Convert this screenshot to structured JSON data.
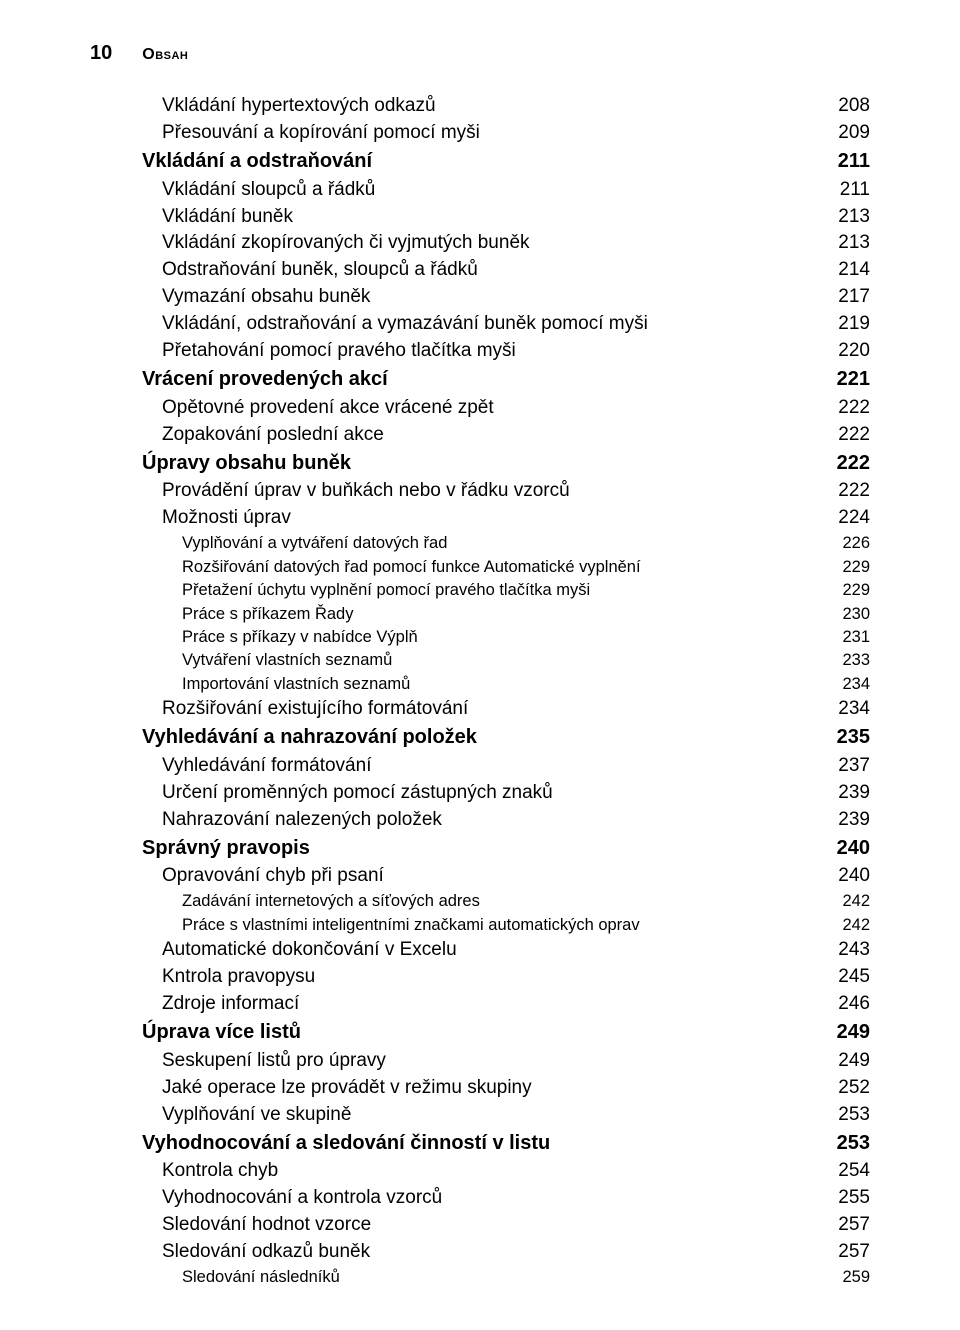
{
  "header": {
    "page_number": "10",
    "title": "Obsah"
  },
  "toc": {
    "entries": [
      {
        "label": "Vkládání hypertextových odkazů",
        "page": "208",
        "indent": 1,
        "weight": 1
      },
      {
        "label": "Přesouvání a kopírování pomocí myši",
        "page": "209",
        "indent": 1,
        "weight": 1
      },
      {
        "label": "Vkládání a odstraňování",
        "page": "211",
        "indent": 0,
        "weight": 0
      },
      {
        "label": "Vkládání sloupců a řádků",
        "page": "211",
        "indent": 1,
        "weight": 1
      },
      {
        "label": "Vkládání buněk",
        "page": "213",
        "indent": 1,
        "weight": 1
      },
      {
        "label": "Vkládání zkopírovaných či vyjmutých buněk",
        "page": "213",
        "indent": 1,
        "weight": 1
      },
      {
        "label": "Odstraňování buněk, sloupců a řádků",
        "page": "214",
        "indent": 1,
        "weight": 1
      },
      {
        "label": "Vymazání obsahu buněk",
        "page": "217",
        "indent": 1,
        "weight": 1
      },
      {
        "label": "Vkládání, odstraňování a vymazávání buněk pomocí myši",
        "page": "219",
        "indent": 1,
        "weight": 1
      },
      {
        "label": "Přetahování pomocí pravého tlačítka myši",
        "page": "220",
        "indent": 1,
        "weight": 1
      },
      {
        "label": "Vrácení provedených akcí",
        "page": "221",
        "indent": 0,
        "weight": 0
      },
      {
        "label": "Opětovné provedení akce vrácené zpět",
        "page": "222",
        "indent": 1,
        "weight": 1
      },
      {
        "label": "Zopakování poslední akce",
        "page": "222",
        "indent": 1,
        "weight": 1
      },
      {
        "label": "Úpravy obsahu buněk",
        "page": "222",
        "indent": 0,
        "weight": 0
      },
      {
        "label": "Provádění úprav v buňkách nebo v řádku vzorců",
        "page": "222",
        "indent": 1,
        "weight": 1
      },
      {
        "label": "Možnosti úprav",
        "page": "224",
        "indent": 1,
        "weight": 1
      },
      {
        "label": "Vyplňování a vytváření datových řad",
        "page": "226",
        "indent": 2,
        "weight": 2
      },
      {
        "label": "Rozšiřování datových řad pomocí funkce Automatické vyplnění",
        "page": "229",
        "indent": 2,
        "weight": 2
      },
      {
        "label": "Přetažení úchytu vyplnění pomocí pravého tlačítka myši",
        "page": "229",
        "indent": 2,
        "weight": 2
      },
      {
        "label": "Práce s příkazem Řady",
        "page": "230",
        "indent": 2,
        "weight": 2
      },
      {
        "label": "Práce s příkazy v nabídce Výplň",
        "page": "231",
        "indent": 2,
        "weight": 2
      },
      {
        "label": "Vytváření vlastních seznamů",
        "page": "233",
        "indent": 2,
        "weight": 2
      },
      {
        "label": "Importování vlastních seznamů",
        "page": "234",
        "indent": 2,
        "weight": 2
      },
      {
        "label": "Rozšiřování existujícího formátování",
        "page": "234",
        "indent": 1,
        "weight": 1
      },
      {
        "label": "Vyhledávání a nahrazování položek",
        "page": "235",
        "indent": 0,
        "weight": 0
      },
      {
        "label": "Vyhledávání formátování",
        "page": "237",
        "indent": 1,
        "weight": 1
      },
      {
        "label": "Určení proměnných pomocí zástupných znaků",
        "page": "239",
        "indent": 1,
        "weight": 1
      },
      {
        "label": "Nahrazování nalezených položek",
        "page": "239",
        "indent": 1,
        "weight": 1
      },
      {
        "label": "Správný pravopis",
        "page": "240",
        "indent": 0,
        "weight": 0
      },
      {
        "label": "Opravování chyb při psaní",
        "page": "240",
        "indent": 1,
        "weight": 1
      },
      {
        "label": "Zadávání internetových a síťových adres",
        "page": "242",
        "indent": 2,
        "weight": 2
      },
      {
        "label": "Práce s vlastními inteligentními značkami automatických oprav",
        "page": "242",
        "indent": 2,
        "weight": 2
      },
      {
        "label": "Automatické dokončování v Excelu",
        "page": "243",
        "indent": 1,
        "weight": 1
      },
      {
        "label": "Kntrola pravopysu",
        "page": "245",
        "indent": 1,
        "weight": 1
      },
      {
        "label": "Zdroje informací",
        "page": "246",
        "indent": 1,
        "weight": 1
      },
      {
        "label": "Úprava více listů",
        "page": "249",
        "indent": 0,
        "weight": 0
      },
      {
        "label": "Seskupení listů pro úpravy",
        "page": "249",
        "indent": 1,
        "weight": 1
      },
      {
        "label": "Jaké operace lze provádět v režimu skupiny",
        "page": "252",
        "indent": 1,
        "weight": 1
      },
      {
        "label": "Vyplňování ve skupině",
        "page": "253",
        "indent": 1,
        "weight": 1
      },
      {
        "label": "Vyhodnocování a sledování činností v listu",
        "page": "253",
        "indent": 0,
        "weight": 0
      },
      {
        "label": "Kontrola chyb",
        "page": "254",
        "indent": 1,
        "weight": 1
      },
      {
        "label": "Vyhodnocování a kontrola vzorců",
        "page": "255",
        "indent": 1,
        "weight": 1
      },
      {
        "label": "Sledování hodnot vzorce",
        "page": "257",
        "indent": 1,
        "weight": 1
      },
      {
        "label": "Sledování odkazů buněk",
        "page": "257",
        "indent": 1,
        "weight": 1
      },
      {
        "label": "Sledování následníků",
        "page": "259",
        "indent": 2,
        "weight": 2
      }
    ]
  }
}
